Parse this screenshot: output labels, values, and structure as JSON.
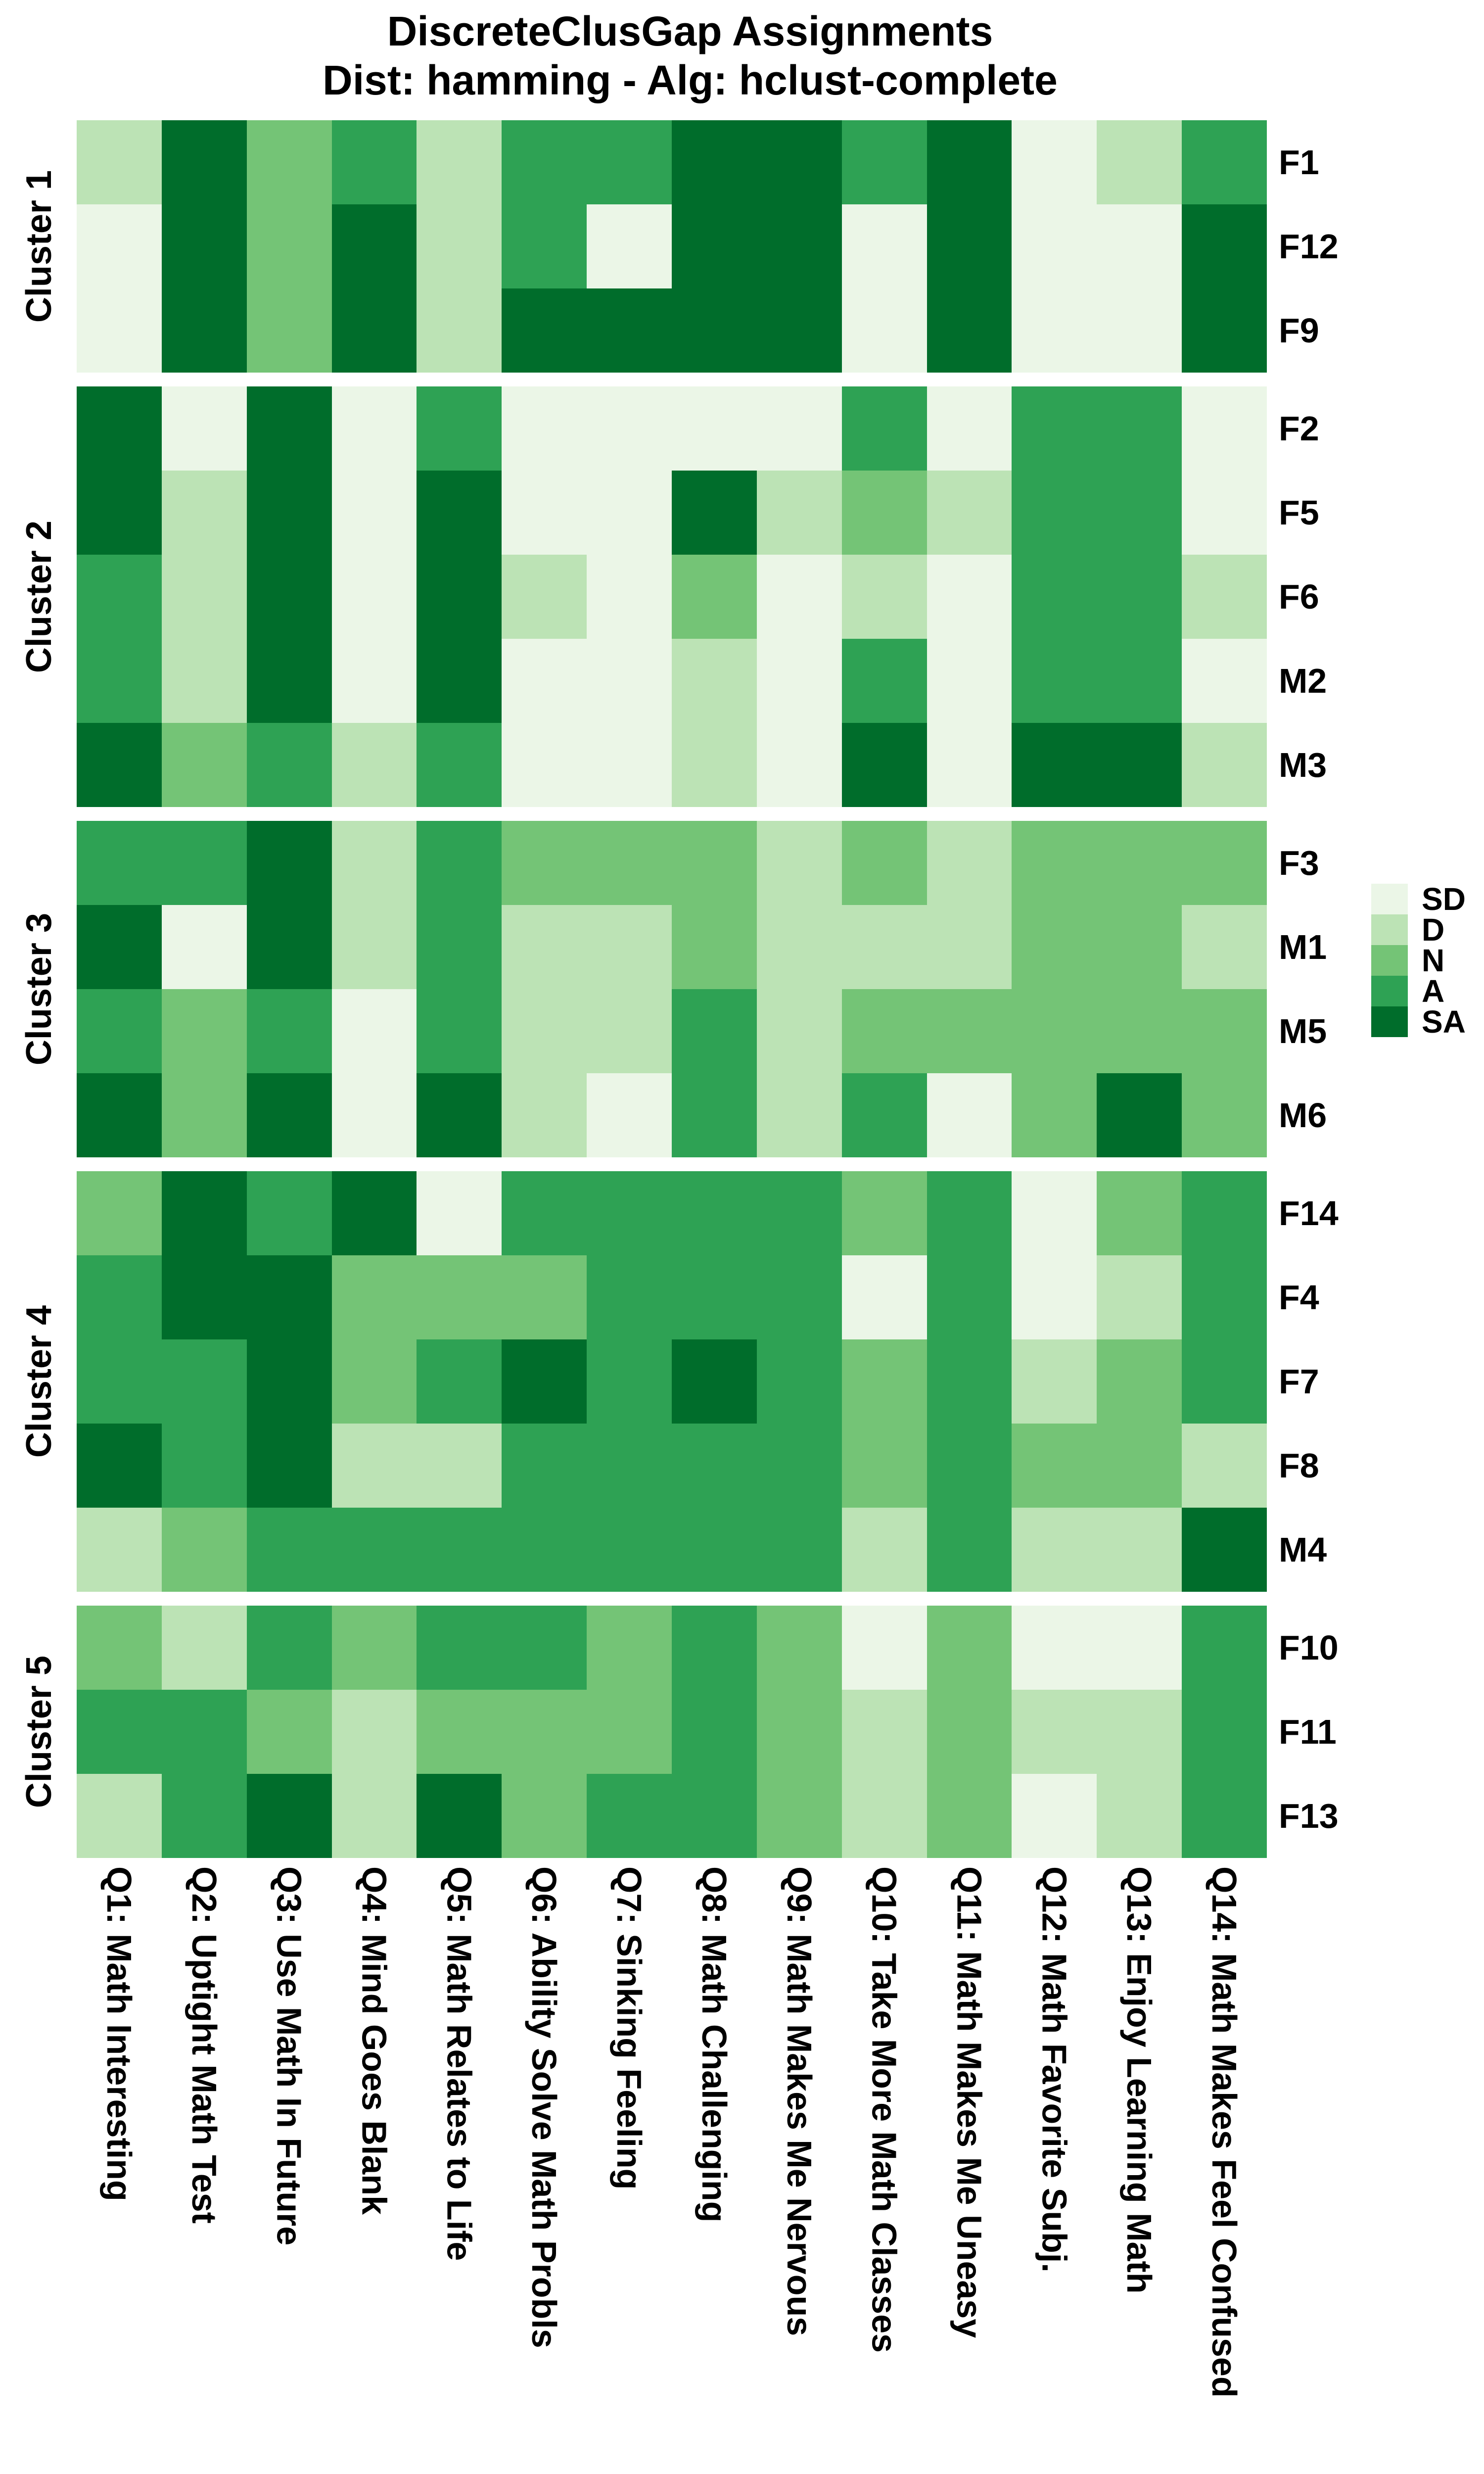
{
  "chart_data": {
    "type": "heatmap",
    "title": "DiscreteClusGap Assignments",
    "subtitle": "Dist: hamming - Alg: hclust-complete",
    "value_scale": [
      "SD",
      "D",
      "N",
      "A",
      "SA"
    ],
    "colors": {
      "SD": "#EBF6E7",
      "D": "#BCE3B5",
      "N": "#74C476",
      "A": "#2EA254",
      "SA": "#006D2B"
    },
    "legend": {
      "position": "right",
      "entries": [
        "SD",
        "D",
        "N",
        "A",
        "SA"
      ]
    },
    "x_labels": [
      "Q1: Math Interesting",
      "Q2: Uptight Math Test",
      "Q3: Use Math In Future",
      "Q4: Mind Goes Blank",
      "Q5: Math Relates to Life",
      "Q6: Ability Solve Math Probls",
      "Q7: Sinking Feeling",
      "Q8: Math Challenging",
      "Q9: Math Makes Me Nervous",
      "Q10: Take More Math Classes",
      "Q11: Math Makes Me Uneasy",
      "Q12: Math Favorite Subj.",
      "Q13: Enjoy Learning Math",
      "Q14: Math Makes Feel Confused"
    ],
    "clusters": [
      {
        "name": "Cluster 1",
        "rows": [
          {
            "id": "F1",
            "values": [
              "D",
              "SA",
              "N",
              "A",
              "D",
              "A",
              "A",
              "SA",
              "SA",
              "A",
              "SA",
              "SD",
              "D",
              "A"
            ]
          },
          {
            "id": "F12",
            "values": [
              "SD",
              "SA",
              "N",
              "SA",
              "D",
              "A",
              "SD",
              "SA",
              "SA",
              "SD",
              "SA",
              "SD",
              "SD",
              "SA"
            ]
          },
          {
            "id": "F9",
            "values": [
              "SD",
              "SA",
              "N",
              "SA",
              "D",
              "SA",
              "SA",
              "SA",
              "SA",
              "SD",
              "SA",
              "SD",
              "SD",
              "SA"
            ]
          }
        ]
      },
      {
        "name": "Cluster 2",
        "rows": [
          {
            "id": "F2",
            "values": [
              "SA",
              "SD",
              "SA",
              "SD",
              "A",
              "SD",
              "SD",
              "SD",
              "SD",
              "A",
              "SD",
              "A",
              "A",
              "SD"
            ]
          },
          {
            "id": "F5",
            "values": [
              "SA",
              "D",
              "SA",
              "SD",
              "SA",
              "SD",
              "SD",
              "SA",
              "D",
              "N",
              "D",
              "A",
              "A",
              "SD"
            ]
          },
          {
            "id": "F6",
            "values": [
              "A",
              "D",
              "SA",
              "SD",
              "SA",
              "D",
              "SD",
              "N",
              "SD",
              "D",
              "SD",
              "A",
              "A",
              "D"
            ]
          },
          {
            "id": "M2",
            "values": [
              "A",
              "D",
              "SA",
              "SD",
              "SA",
              "SD",
              "SD",
              "D",
              "SD",
              "A",
              "SD",
              "A",
              "A",
              "SD"
            ]
          },
          {
            "id": "M3",
            "values": [
              "SA",
              "N",
              "A",
              "D",
              "A",
              "SD",
              "SD",
              "D",
              "SD",
              "SA",
              "SD",
              "SA",
              "SA",
              "D"
            ]
          }
        ]
      },
      {
        "name": "Cluster 3",
        "rows": [
          {
            "id": "F3",
            "values": [
              "A",
              "A",
              "SA",
              "D",
              "A",
              "N",
              "N",
              "N",
              "D",
              "N",
              "D",
              "N",
              "N",
              "N"
            ]
          },
          {
            "id": "M1",
            "values": [
              "SA",
              "SD",
              "SA",
              "D",
              "A",
              "D",
              "D",
              "N",
              "D",
              "D",
              "D",
              "N",
              "N",
              "D"
            ]
          },
          {
            "id": "M5",
            "values": [
              "A",
              "N",
              "A",
              "SD",
              "A",
              "D",
              "D",
              "A",
              "D",
              "N",
              "N",
              "N",
              "N",
              "N"
            ]
          },
          {
            "id": "M6",
            "values": [
              "SA",
              "N",
              "SA",
              "SD",
              "SA",
              "D",
              "SD",
              "A",
              "D",
              "A",
              "SD",
              "N",
              "SA",
              "N"
            ]
          }
        ]
      },
      {
        "name": "Cluster 4",
        "rows": [
          {
            "id": "F14",
            "values": [
              "N",
              "SA",
              "A",
              "SA",
              "SD",
              "A",
              "A",
              "A",
              "A",
              "N",
              "A",
              "SD",
              "N",
              "A"
            ]
          },
          {
            "id": "F4",
            "values": [
              "A",
              "SA",
              "SA",
              "N",
              "N",
              "N",
              "A",
              "A",
              "A",
              "SD",
              "A",
              "SD",
              "D",
              "A"
            ]
          },
          {
            "id": "F7",
            "values": [
              "A",
              "A",
              "SA",
              "N",
              "A",
              "SA",
              "A",
              "SA",
              "A",
              "N",
              "A",
              "D",
              "N",
              "A"
            ]
          },
          {
            "id": "F8",
            "values": [
              "SA",
              "A",
              "SA",
              "D",
              "D",
              "A",
              "A",
              "A",
              "A",
              "N",
              "A",
              "N",
              "N",
              "D"
            ]
          },
          {
            "id": "M4",
            "values": [
              "D",
              "N",
              "A",
              "A",
              "A",
              "A",
              "A",
              "A",
              "A",
              "D",
              "A",
              "D",
              "D",
              "SA"
            ]
          }
        ]
      },
      {
        "name": "Cluster 5",
        "rows": [
          {
            "id": "F10",
            "values": [
              "N",
              "D",
              "A",
              "N",
              "A",
              "A",
              "N",
              "A",
              "N",
              "SD",
              "N",
              "SD",
              "SD",
              "A"
            ]
          },
          {
            "id": "F11",
            "values": [
              "A",
              "A",
              "N",
              "D",
              "N",
              "N",
              "N",
              "A",
              "N",
              "D",
              "N",
              "D",
              "D",
              "A"
            ]
          },
          {
            "id": "F13",
            "values": [
              "D",
              "A",
              "SA",
              "D",
              "SA",
              "N",
              "A",
              "A",
              "N",
              "D",
              "N",
              "SD",
              "D",
              "A"
            ]
          }
        ]
      }
    ]
  }
}
